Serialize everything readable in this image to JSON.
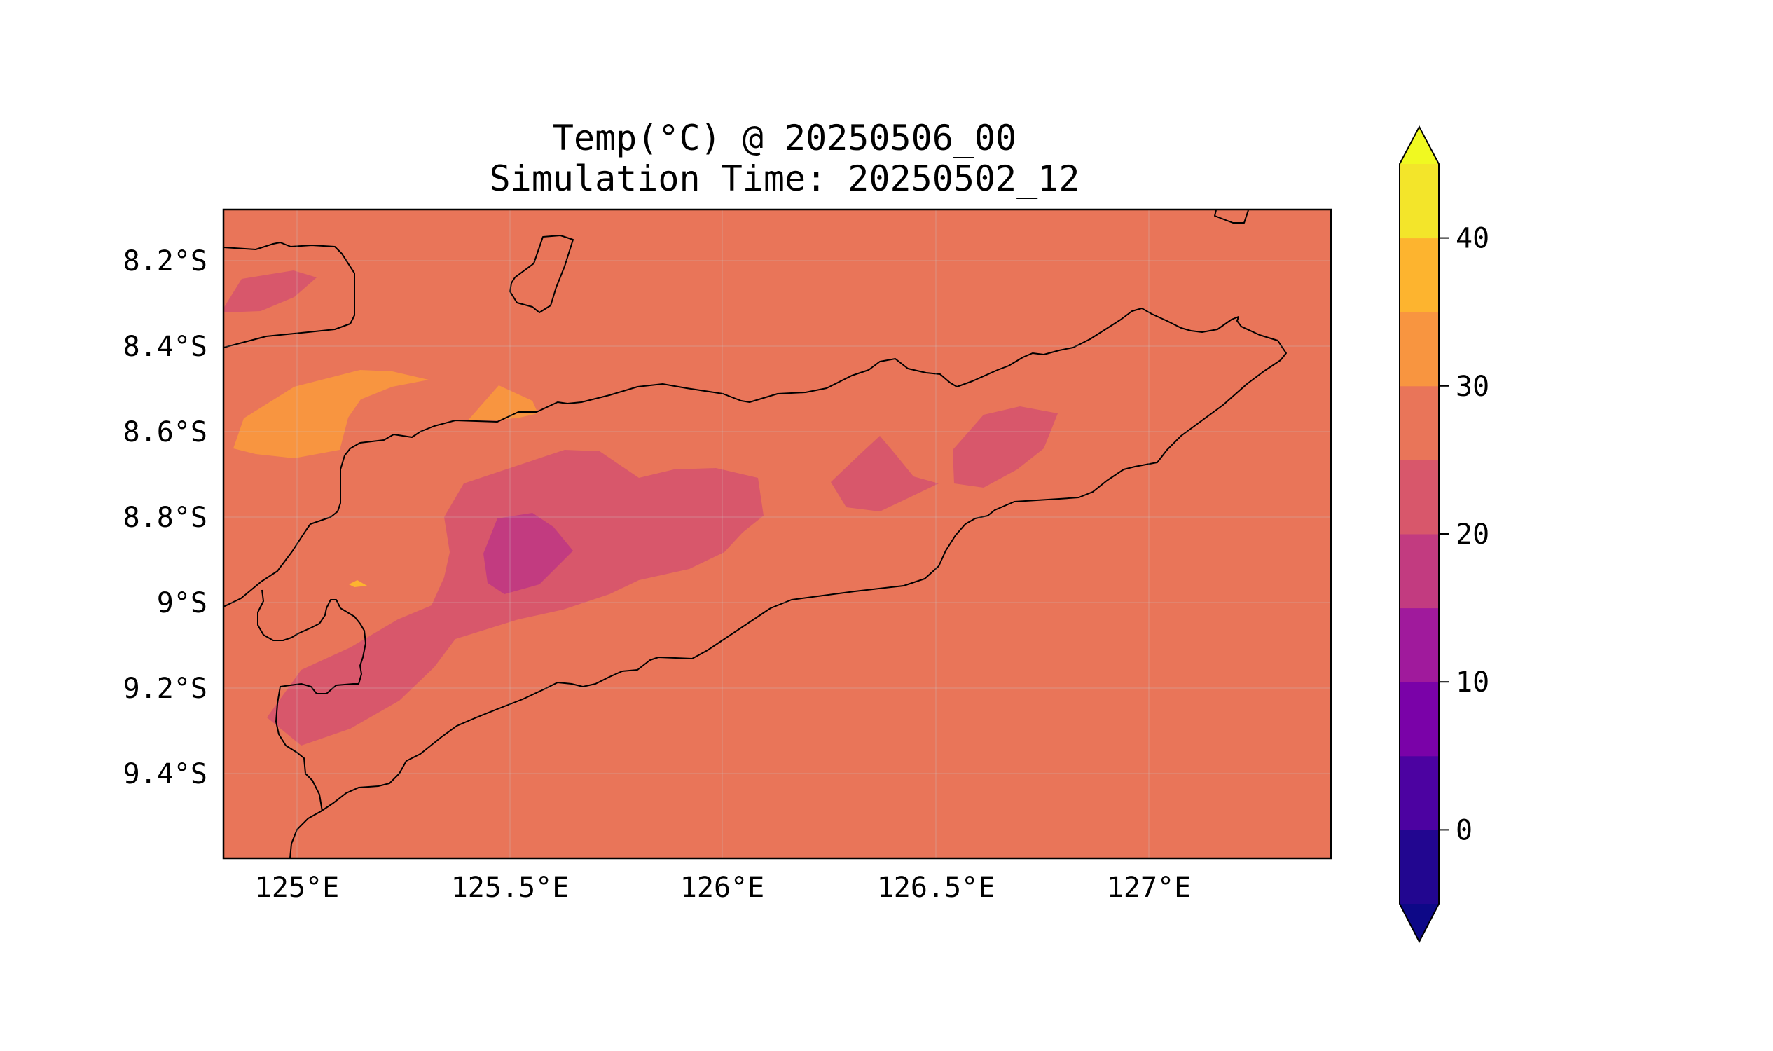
{
  "title_line1": "Temp(°C) @ 20250506_00",
  "title_line2": "Simulation Time: 20250502_12",
  "map": {
    "lon_range": [
      124.83,
      127.42
    ],
    "lat_range": [
      -9.6,
      -8.08
    ],
    "x_ticks": [
      "125°E",
      "125.5°E",
      "126°E",
      "126.5°E",
      "127°E"
    ],
    "y_ticks": [
      "8.2°S",
      "8.4°S",
      "8.6°S",
      "8.8°S",
      "9°S",
      "9.2°S",
      "9.4°S"
    ],
    "background_level_color": "#e97559"
  },
  "colorbar": {
    "colormap": "plasma",
    "levels": [
      -5,
      0,
      5,
      10,
      15,
      20,
      25,
      30,
      35,
      40,
      45
    ],
    "colors": [
      "#220690",
      "#4c02a1",
      "#7a02a8",
      "#a01a9c",
      "#c23b80",
      "#d8576b",
      "#e97559",
      "#f89540",
      "#fdb42f",
      "#f3e52a"
    ],
    "under_color": "#0d0887",
    "over_color": "#f0f921",
    "ticks": [
      "0",
      "10",
      "20",
      "30",
      "40"
    ]
  }
}
